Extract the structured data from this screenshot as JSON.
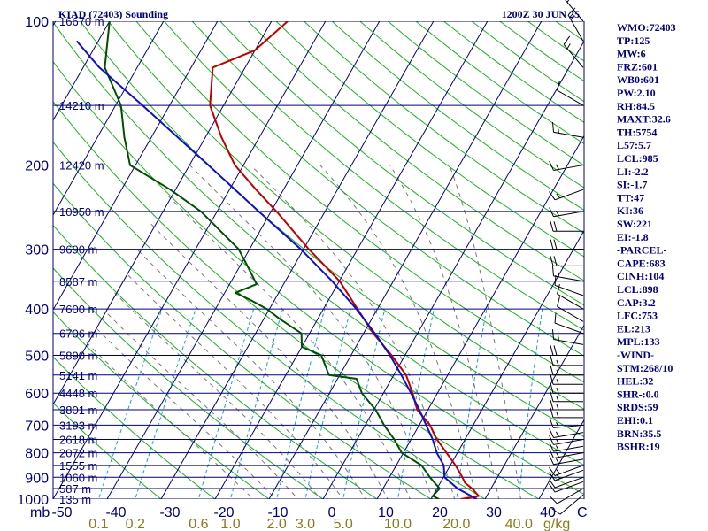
{
  "header": {
    "title": "KIAD (72403) Sounding",
    "time": "1200Z 30 JUN 25"
  },
  "colors": {
    "axis": "#00007a",
    "isotherm": "#00007a",
    "dry_adiabat": "#20b020",
    "moist_adiabat": "#777777",
    "mixing_ratio": "#1a9fd6",
    "temperature": "#c00000",
    "dewpoint": "#005000",
    "parcel": "#1010c0",
    "wind_barb": "#000000"
  },
  "stats": [
    "WMO:72403",
    "TP:125",
    "MW:6",
    "FRZ:601",
    "WB0:601",
    "PW:2.10",
    "RH:84.5",
    "MAXT:32.6",
    "TH:5754",
    "L57:5.7",
    "LCL:985",
    "LI:-2.2",
    "SI:-1.7",
    "TT:47",
    "KI:36",
    "SW:221",
    "EI:-1.8",
    "-PARCEL-",
    "CAPE:683",
    "CINH:104",
    "LCL:898",
    "CAP:3.2",
    "LFC:753",
    "EL:213",
    "MPL:133",
    "-WIND-",
    "STM:268/10",
    "HEL:32",
    "SHR-:0.0",
    "SRDS:59",
    "EHI:0.1",
    "BRN:35.5",
    "BSHR:19"
  ],
  "chart_data": {
    "type": "skew-t",
    "ylabel": "mb",
    "xlabel": "C",
    "mixing_ratio_unit": "g/kg",
    "pressure_ticks": [
      100,
      200,
      300,
      400,
      500,
      600,
      700,
      800,
      900,
      1000
    ],
    "temperature_ticks": [
      "-50",
      "-40",
      "-30",
      "-20",
      "-10",
      "0",
      "10",
      "20",
      "30",
      "40"
    ],
    "temperature_tick_values": [
      -50,
      -40,
      -30,
      -20,
      -10,
      0,
      10,
      20,
      30,
      40
    ],
    "mixing_ratio_ticks": [
      "0.1",
      "0.2",
      "0.6",
      "1.0",
      "2.0",
      "3.0",
      "5.0",
      "10.0",
      "20.0",
      "40.0"
    ],
    "mixing_ratio_values": [
      0.1,
      0.2,
      0.6,
      1.0,
      2.0,
      3.0,
      5.0,
      10.0,
      20.0,
      40.0
    ],
    "height_levels": [
      {
        "p": 100,
        "label": "16670 m"
      },
      {
        "p": 150,
        "label": "14210 m"
      },
      {
        "p": 200,
        "label": "12420 m"
      },
      {
        "p": 250,
        "label": "10950 m"
      },
      {
        "p": 300,
        "label": "9690 m"
      },
      {
        "p": 350,
        "label": "8587 m"
      },
      {
        "p": 400,
        "label": "7600 m"
      },
      {
        "p": 450,
        "label": "6706 m"
      },
      {
        "p": 500,
        "label": "5890 m"
      },
      {
        "p": 550,
        "label": "5141 m"
      },
      {
        "p": 600,
        "label": "4448 m"
      },
      {
        "p": 650,
        "label": "3801 m"
      },
      {
        "p": 700,
        "label": "3193 m"
      },
      {
        "p": 750,
        "label": "2618 m"
      },
      {
        "p": 800,
        "label": "2072 m"
      },
      {
        "p": 850,
        "label": "1555 m"
      },
      {
        "p": 900,
        "label": "1060 m"
      },
      {
        "p": 950,
        "label": "587 m"
      },
      {
        "p": 1000,
        "label": "135 m"
      }
    ],
    "series": [
      {
        "name": "",
        "role": "temperature",
        "points": [
          [
            1000,
            25.5
          ],
          [
            985,
            28.5
          ],
          [
            950,
            26.5
          ],
          [
            925,
            24.6
          ],
          [
            900,
            23.5
          ],
          [
            850,
            21.0
          ],
          [
            800,
            18.0
          ],
          [
            750,
            14.8
          ],
          [
            700,
            12.0
          ],
          [
            650,
            8.0
          ],
          [
            600,
            5.4
          ],
          [
            550,
            2.3
          ],
          [
            500,
            -2.5
          ],
          [
            450,
            -8.2
          ],
          [
            400,
            -13.7
          ],
          [
            350,
            -19.9
          ],
          [
            300,
            -29.0
          ],
          [
            250,
            -39.0
          ],
          [
            225,
            -45.1
          ],
          [
            200,
            -51.6
          ],
          [
            175,
            -57.0
          ],
          [
            150,
            -62.5
          ],
          [
            125,
            -66.0
          ],
          [
            115,
            -60.0
          ],
          [
            100,
            -57.0
          ]
        ]
      },
      {
        "name": "",
        "role": "dewpoint",
        "points": [
          [
            1000,
            21.5
          ],
          [
            985,
            20.0
          ],
          [
            950,
            20.5
          ],
          [
            925,
            19.0
          ],
          [
            900,
            17.5
          ],
          [
            850,
            14.7
          ],
          [
            800,
            9.7
          ],
          [
            750,
            6.9
          ],
          [
            700,
            3.5
          ],
          [
            650,
            0.3
          ],
          [
            600,
            -4.0
          ],
          [
            560,
            -6.5
          ],
          [
            550,
            -12.0
          ],
          [
            500,
            -15.5
          ],
          [
            480,
            -20.0
          ],
          [
            450,
            -21.5
          ],
          [
            420,
            -27.0
          ],
          [
            400,
            -30.5
          ],
          [
            385,
            -34.0
          ],
          [
            370,
            -38.0
          ],
          [
            355,
            -35.0
          ],
          [
            330,
            -38.0
          ],
          [
            300,
            -42.0
          ],
          [
            250,
            -53.0
          ],
          [
            225,
            -61.0
          ],
          [
            200,
            -71.0
          ],
          [
            175,
            -75.0
          ],
          [
            150,
            -79.0
          ],
          [
            125,
            -86.0
          ],
          [
            100,
            -90.0
          ]
        ]
      },
      {
        "name": "",
        "role": "parcel",
        "points": [
          [
            1000,
            28.5
          ],
          [
            950,
            23.8
          ],
          [
            900,
            20.2
          ],
          [
            850,
            18.8
          ],
          [
            800,
            16.2
          ],
          [
            750,
            14.0
          ],
          [
            700,
            11.3
          ],
          [
            650,
            8.4
          ],
          [
            600,
            5.1
          ],
          [
            550,
            1.4
          ],
          [
            500,
            -2.8
          ],
          [
            450,
            -7.9
          ],
          [
            400,
            -13.9
          ],
          [
            350,
            -21.3
          ],
          [
            300,
            -30.5
          ],
          [
            250,
            -42.3
          ],
          [
            200,
            -56.5
          ],
          [
            150,
            -75.0
          ],
          [
            125,
            -87.0
          ],
          [
            110,
            -94.0
          ]
        ]
      }
    ],
    "wind_barbs": [
      {
        "p": 980,
        "dir": 230,
        "spd": 10
      },
      {
        "p": 950,
        "dir": 240,
        "spd": 10
      },
      {
        "p": 920,
        "dir": 250,
        "spd": 10
      },
      {
        "p": 900,
        "dir": 250,
        "spd": 10
      },
      {
        "p": 870,
        "dir": 250,
        "spd": 15
      },
      {
        "p": 850,
        "dir": 250,
        "spd": 15
      },
      {
        "p": 825,
        "dir": 260,
        "spd": 15
      },
      {
        "p": 800,
        "dir": 260,
        "spd": 15
      },
      {
        "p": 775,
        "dir": 260,
        "spd": 15
      },
      {
        "p": 750,
        "dir": 260,
        "spd": 15
      },
      {
        "p": 725,
        "dir": 260,
        "spd": 15
      },
      {
        "p": 700,
        "dir": 265,
        "spd": 15
      },
      {
        "p": 675,
        "dir": 270,
        "spd": 15
      },
      {
        "p": 650,
        "dir": 270,
        "spd": 15
      },
      {
        "p": 625,
        "dir": 270,
        "spd": 15
      },
      {
        "p": 600,
        "dir": 270,
        "spd": 15
      },
      {
        "p": 575,
        "dir": 270,
        "spd": 15
      },
      {
        "p": 550,
        "dir": 270,
        "spd": 15
      },
      {
        "p": 525,
        "dir": 270,
        "spd": 15
      },
      {
        "p": 500,
        "dir": 270,
        "spd": 20
      },
      {
        "p": 475,
        "dir": 280,
        "spd": 15
      },
      {
        "p": 450,
        "dir": 290,
        "spd": 10
      },
      {
        "p": 425,
        "dir": 300,
        "spd": 10
      },
      {
        "p": 400,
        "dir": 300,
        "spd": 10
      },
      {
        "p": 375,
        "dir": 290,
        "spd": 10
      },
      {
        "p": 350,
        "dir": 280,
        "spd": 15
      },
      {
        "p": 325,
        "dir": 270,
        "spd": 20
      },
      {
        "p": 300,
        "dir": 270,
        "spd": 20
      },
      {
        "p": 275,
        "dir": 270,
        "spd": 20
      },
      {
        "p": 250,
        "dir": 260,
        "spd": 15
      },
      {
        "p": 225,
        "dir": 250,
        "spd": 15
      },
      {
        "p": 200,
        "dir": 260,
        "spd": 15
      },
      {
        "p": 175,
        "dir": 280,
        "spd": 15
      },
      {
        "p": 150,
        "dir": 300,
        "spd": 10
      },
      {
        "p": 125,
        "dir": 320,
        "spd": 15
      },
      {
        "p": 110,
        "dir": 330,
        "spd": 15
      },
      {
        "p": 100,
        "dir": 320,
        "spd": 15
      }
    ]
  }
}
